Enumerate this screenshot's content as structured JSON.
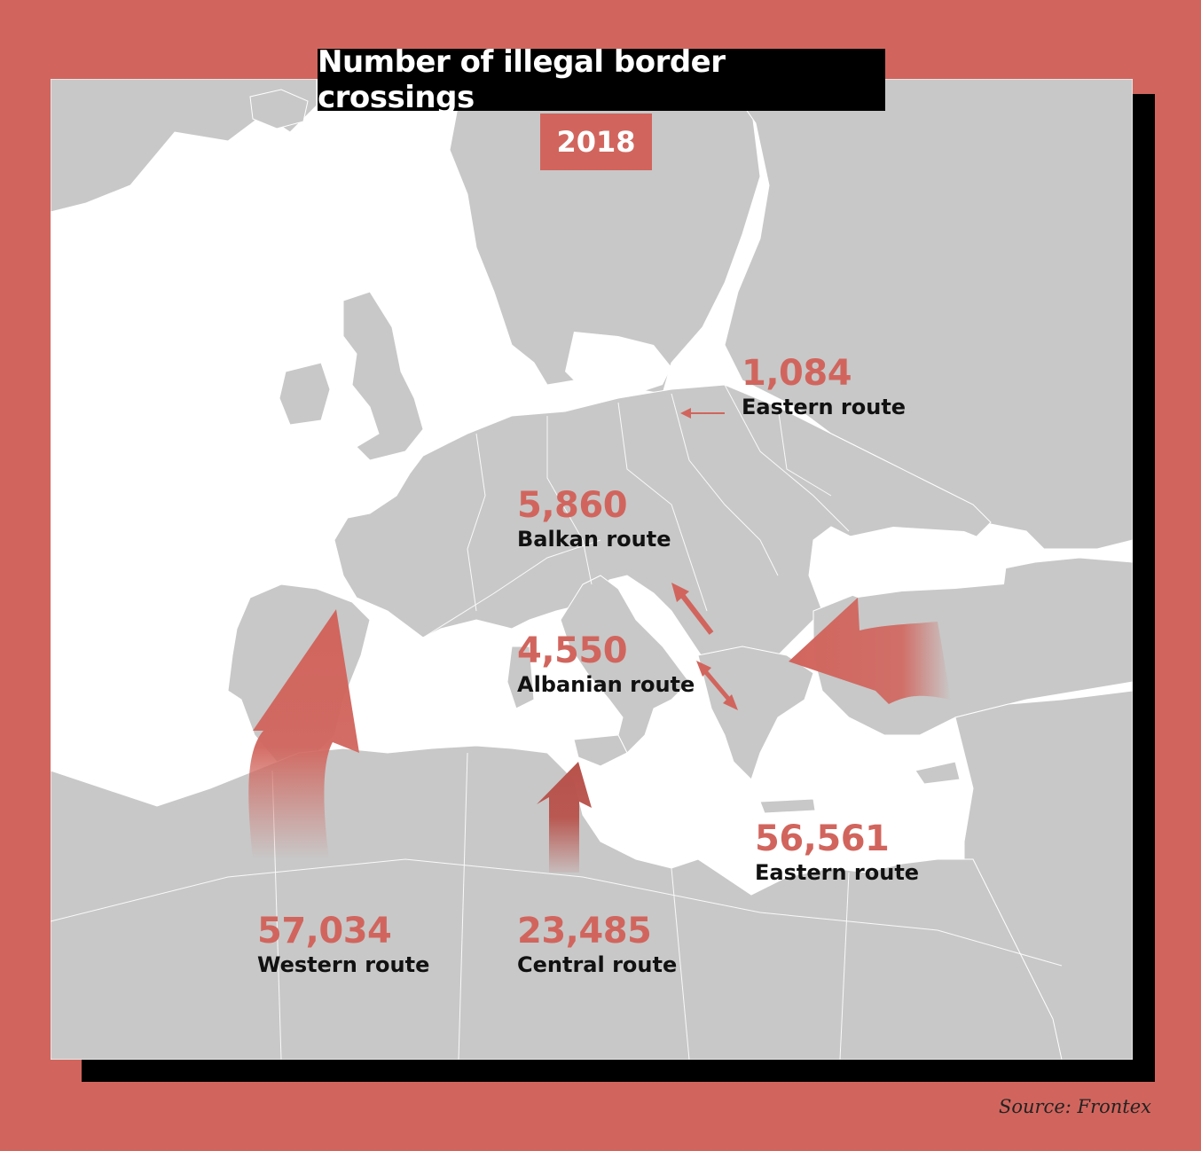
{
  "title": "Number of illegal border crossings",
  "year": "2018",
  "routes": [
    {
      "value": "1,084",
      "name": "Eastern route"
    },
    {
      "value": "5,860",
      "name": "Balkan route"
    },
    {
      "value": "4,550",
      "name": "Albanian route"
    },
    {
      "value": "56,561",
      "name": "Eastern route"
    },
    {
      "value": "57,034",
      "name": "Western route"
    },
    {
      "value": "23,485",
      "name": "Central route"
    }
  ],
  "source": "Source: Frontex",
  "colors": {
    "accent": "#d1655d",
    "land": "#c8c8c8",
    "sea": "#ffffff",
    "frame": "#000000"
  }
}
